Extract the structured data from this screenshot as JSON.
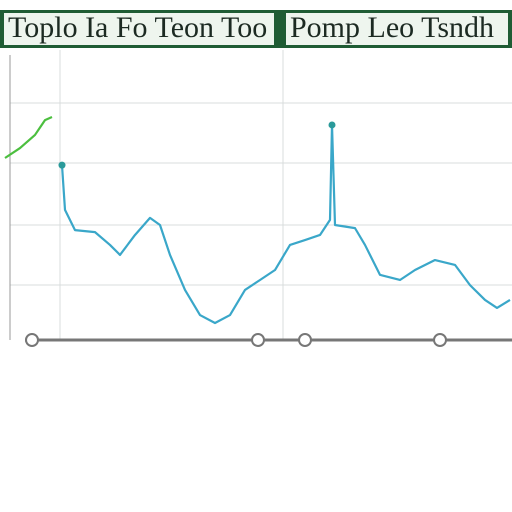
{
  "chart_data": {
    "type": "line",
    "title": "Toplo Ia Fo Teon Too",
    "subtitle": "Pomp Leo Tsndh",
    "xlim": [
      0,
      512
    ],
    "ylim": [
      0,
      100
    ],
    "series": [
      {
        "color": "#3aa7c9",
        "x": [
          62,
          65,
          75,
          95,
          110,
          120,
          135,
          150,
          160,
          170,
          185,
          200,
          215,
          230,
          245,
          260,
          275,
          290,
          305,
          320,
          330,
          332,
          335,
          355,
          365,
          380,
          400,
          415,
          435,
          455,
          470,
          485,
          497,
          510
        ],
        "values": [
          59.6,
          43.9,
          36.8,
          36.1,
          31.6,
          28.1,
          35.1,
          41.1,
          38.6,
          28.1,
          15.8,
          7.0,
          4.2,
          7.0,
          15.8,
          19.3,
          22.8,
          31.6,
          33.3,
          35.1,
          40.4,
          73.7,
          38.6,
          37.5,
          31.6,
          21.1,
          19.3,
          22.8,
          26.3,
          24.6,
          17.5,
          12.3,
          9.5,
          12.3
        ]
      },
      {
        "color": "#4cbf3f",
        "x": [
          5,
          20,
          35,
          45,
          52
        ],
        "values": [
          62.1,
          65.6,
          70.2,
          75.4,
          76.5
        ]
      }
    ]
  }
}
